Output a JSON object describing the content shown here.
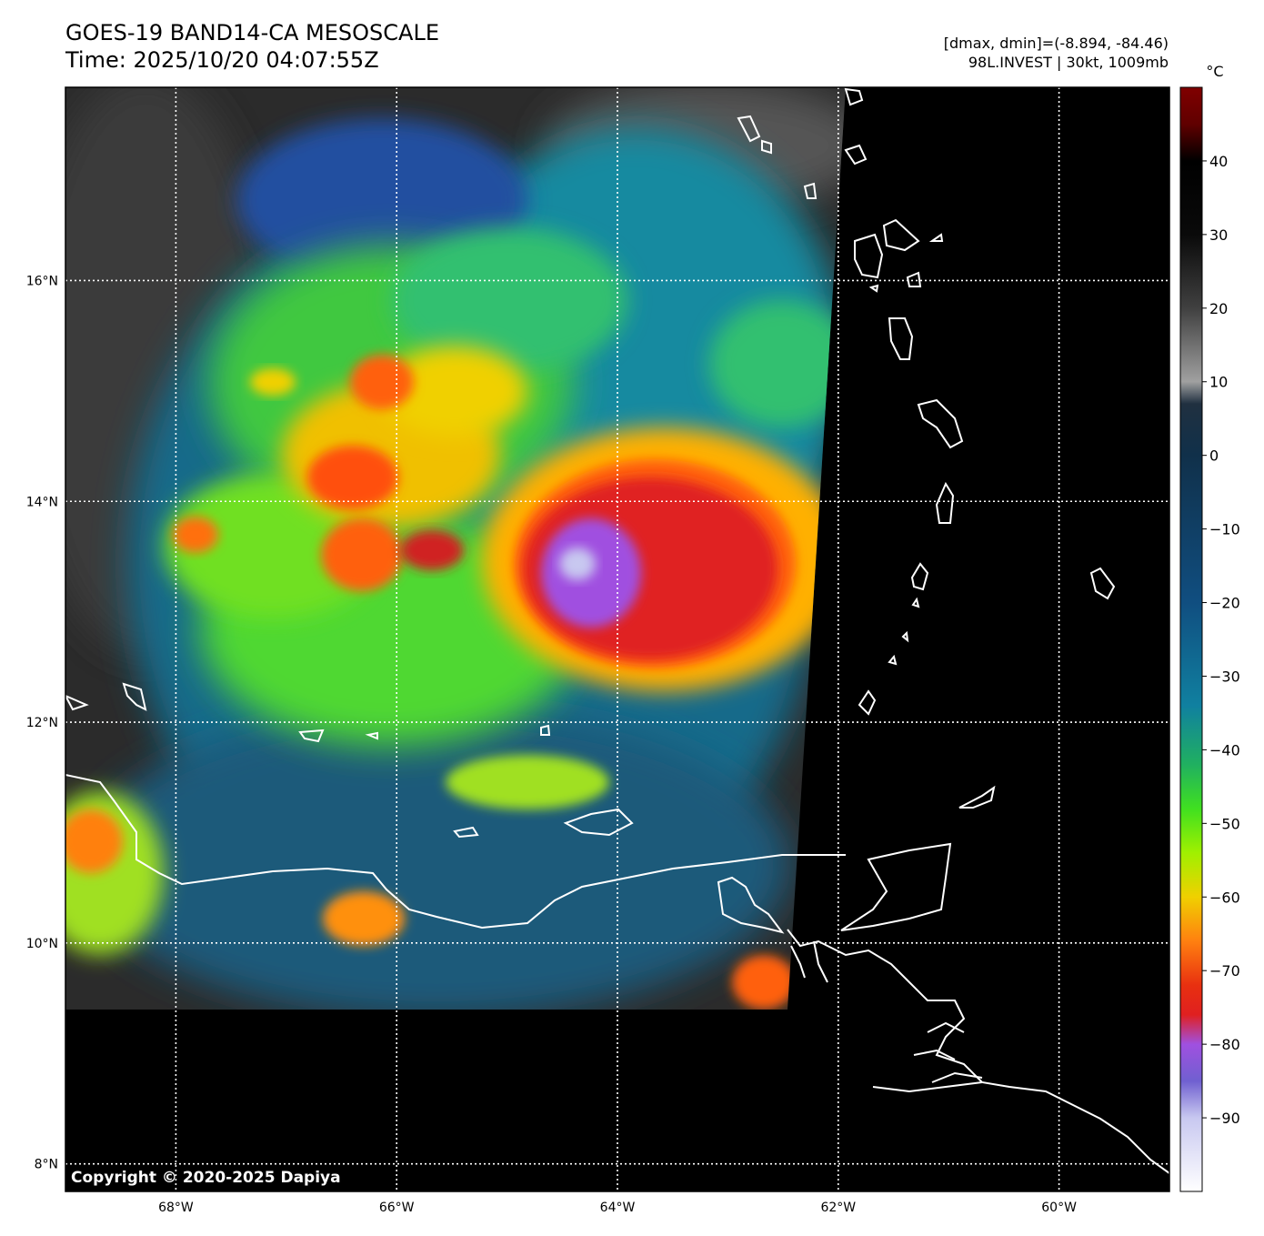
{
  "header": {
    "title_line1": "GOES-19 BAND14-CA MESOSCALE",
    "title_line2": "Time: 2025/10/20 04:07:55Z",
    "info_line1": "[dmax, dmin]=(-8.894, -84.46)",
    "info_line2": "98L.INVEST | 30kt, 1009mb"
  },
  "map": {
    "lon_range": [
      -69.0,
      -59.0
    ],
    "lat_range": [
      7.75,
      17.75
    ],
    "lon_ticks": [
      {
        "value": -68,
        "label": "68°W"
      },
      {
        "value": -66,
        "label": "66°W"
      },
      {
        "value": -64,
        "label": "64°W"
      },
      {
        "value": -62,
        "label": "62°W"
      },
      {
        "value": -60,
        "label": "60°W"
      }
    ],
    "lat_ticks": [
      {
        "value": 8,
        "label": "8°N"
      },
      {
        "value": 10,
        "label": "10°N"
      },
      {
        "value": 12,
        "label": "12°N"
      },
      {
        "value": 14,
        "label": "14°N"
      },
      {
        "value": 16,
        "label": "16°N"
      }
    ],
    "copyright": "Copyright © 2020-2025 Dapiya",
    "storm_center": {
      "lon": -64.4,
      "lat": 13.2
    }
  },
  "colorbar": {
    "unit": "°C",
    "range": [
      -100,
      50
    ],
    "ticks": [
      {
        "value": 40,
        "label": "40"
      },
      {
        "value": 30,
        "label": "30"
      },
      {
        "value": 20,
        "label": "20"
      },
      {
        "value": 10,
        "label": "10"
      },
      {
        "value": 0,
        "label": "0"
      },
      {
        "value": -10,
        "label": "−10"
      },
      {
        "value": -20,
        "label": "−20"
      },
      {
        "value": -30,
        "label": "−30"
      },
      {
        "value": -40,
        "label": "−40"
      },
      {
        "value": -50,
        "label": "−50"
      },
      {
        "value": -60,
        "label": "−60"
      },
      {
        "value": -70,
        "label": "−70"
      },
      {
        "value": -80,
        "label": "−80"
      },
      {
        "value": -90,
        "label": "−90"
      }
    ],
    "stops": [
      {
        "value": -100,
        "color": "#ffffff"
      },
      {
        "value": -90,
        "color": "#c8c8f0"
      },
      {
        "value": -85,
        "color": "#7060d0"
      },
      {
        "value": -80,
        "color": "#a050e0"
      },
      {
        "value": -76,
        "color": "#e02020"
      },
      {
        "value": -72,
        "color": "#e83010"
      },
      {
        "value": -66,
        "color": "#ff8010"
      },
      {
        "value": -60,
        "color": "#f0d000"
      },
      {
        "value": -54,
        "color": "#a0f000"
      },
      {
        "value": -48,
        "color": "#40e020"
      },
      {
        "value": -42,
        "color": "#20b060"
      },
      {
        "value": -34,
        "color": "#1080a0"
      },
      {
        "value": -20,
        "color": "#104e80"
      },
      {
        "value": 0,
        "color": "#10304a"
      },
      {
        "value": 7,
        "color": "#203040"
      },
      {
        "value": 10,
        "color": "#a0a0a0"
      },
      {
        "value": 20,
        "color": "#404040"
      },
      {
        "value": 30,
        "color": "#0a0a0a"
      },
      {
        "value": 40,
        "color": "#000000"
      },
      {
        "value": 45,
        "color": "#600000"
      },
      {
        "value": 50,
        "color": "#800000"
      }
    ]
  }
}
